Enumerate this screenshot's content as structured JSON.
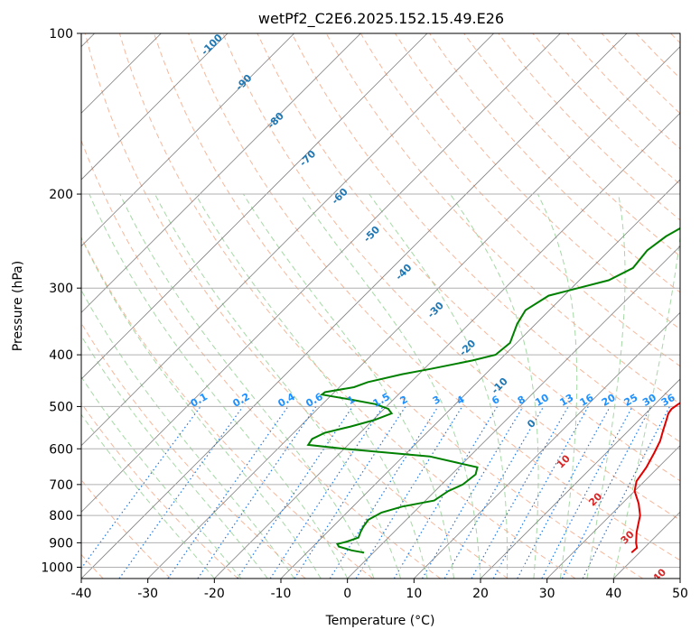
{
  "chart_data": {
    "type": "skew-t",
    "title": "wetPf2_C2E6.2025.152.15.49.E26",
    "xlabel": "Temperature (°C)",
    "ylabel": "Pressure (hPa)",
    "xlim": [
      -40,
      50
    ],
    "ylim": [
      1050,
      100
    ],
    "log_pressure_axis": true,
    "xticks": [
      "-40",
      "-30",
      "-20",
      "-10",
      "0",
      "10",
      "20",
      "30",
      "40",
      "50"
    ],
    "yticks": [
      "100",
      "200",
      "300",
      "400",
      "500",
      "600",
      "700",
      "800",
      "900",
      "1000"
    ],
    "grid": true,
    "series": [
      {
        "color": "#e00000",
        "points": [
          [
            939,
            38.8
          ],
          [
            920,
            38.9
          ],
          [
            900,
            38.0
          ],
          [
            860,
            36.5
          ],
          [
            800,
            34.5
          ],
          [
            760,
            32.5
          ],
          [
            720,
            30.0
          ],
          [
            690,
            28.8
          ],
          [
            650,
            28.2
          ],
          [
            610,
            27.2
          ],
          [
            580,
            26.3
          ],
          [
            555,
            25.2
          ],
          [
            530,
            24.1
          ],
          [
            515,
            23.4
          ],
          [
            505,
            23.2
          ],
          [
            495,
            23.5
          ],
          [
            485,
            24.0
          ],
          [
            475,
            24.7
          ],
          [
            460,
            25.2
          ],
          [
            440,
            24.9
          ],
          [
            425,
            24.7
          ],
          [
            400,
            23.9
          ],
          [
            380,
            22.9
          ],
          [
            350,
            21.0
          ],
          [
            320,
            19.4
          ],
          [
            300,
            18.5
          ],
          [
            270,
            16.9
          ],
          [
            250,
            15.4
          ],
          [
            230,
            13.3
          ],
          [
            210,
            11.5
          ],
          [
            196,
            9.8
          ],
          [
            185,
            7.8
          ],
          [
            175,
            6.0
          ],
          [
            160,
            3.6
          ],
          [
            145,
            1.0
          ],
          [
            130,
            -1.5
          ],
          [
            120,
            -3.4
          ],
          [
            110,
            -5.4
          ],
          [
            103,
            -6.3
          ],
          [
            100,
            -6.9
          ]
        ]
      },
      {
        "color": "#008000",
        "points": [
          [
            939,
            -1.4
          ],
          [
            930,
            -3.6
          ],
          [
            915,
            -6.1
          ],
          [
            905,
            -6.7
          ],
          [
            895,
            -5.6
          ],
          [
            880,
            -4.5
          ],
          [
            860,
            -5.0
          ],
          [
            840,
            -5.4
          ],
          [
            815,
            -5.7
          ],
          [
            790,
            -4.8
          ],
          [
            770,
            -2.6
          ],
          [
            750,
            1.3
          ],
          [
            720,
            2.0
          ],
          [
            700,
            3.2
          ],
          [
            670,
            3.6
          ],
          [
            650,
            2.8
          ],
          [
            620,
            -6.0
          ],
          [
            600,
            -20.0
          ],
          [
            590,
            -26.0
          ],
          [
            575,
            -26.3
          ],
          [
            560,
            -25.3
          ],
          [
            545,
            -22.4
          ],
          [
            530,
            -19.8
          ],
          [
            515,
            -18.2
          ],
          [
            505,
            -19.4
          ],
          [
            495,
            -22.0
          ],
          [
            485,
            -26.5
          ],
          [
            475,
            -31.5
          ],
          [
            470,
            -31.4
          ],
          [
            460,
            -27.8
          ],
          [
            450,
            -26.5
          ],
          [
            435,
            -22.5
          ],
          [
            425,
            -19.0
          ],
          [
            410,
            -14.0
          ],
          [
            400,
            -11.4
          ],
          [
            380,
            -11.0
          ],
          [
            350,
            -12.8
          ],
          [
            330,
            -13.6
          ],
          [
            310,
            -12.3
          ],
          [
            290,
            -5.6
          ],
          [
            275,
            -3.8
          ],
          [
            255,
            -4.3
          ],
          [
            240,
            -3.6
          ],
          [
            225,
            -1.9
          ],
          [
            210,
            0.8
          ],
          [
            200,
            3.0
          ],
          [
            190,
            1.0
          ],
          [
            180,
            -4.2
          ],
          [
            170,
            -7.5
          ],
          [
            160,
            -8.6
          ],
          [
            150,
            -7.5
          ],
          [
            140,
            -5.2
          ],
          [
            130,
            -4.0
          ],
          [
            120,
            -3.2
          ],
          [
            110,
            -4.1
          ],
          [
            100,
            -6.8
          ]
        ]
      }
    ],
    "dry_adiabat_labels": [
      "-100",
      "-90",
      "-80",
      "-70",
      "-60",
      "-50",
      "-40",
      "-30",
      "-20",
      "-10",
      "0",
      "10",
      "20",
      "30",
      "40"
    ],
    "mixing_ratio_labels": [
      "0.1",
      "0.2",
      "0.4",
      "0.6",
      "1",
      "1.5",
      "2",
      "3",
      "4",
      "6",
      "8",
      "10",
      "13",
      "16",
      "20",
      "25",
      "30",
      "36"
    ],
    "colors": {
      "temperature": "#e00000",
      "dewpoint": "#008000",
      "dry_adiabat_label_cold": "#1f77b4",
      "dry_adiabat_label_warm": "#d62728",
      "mixing_ratio_label": "#1e90ff"
    }
  }
}
